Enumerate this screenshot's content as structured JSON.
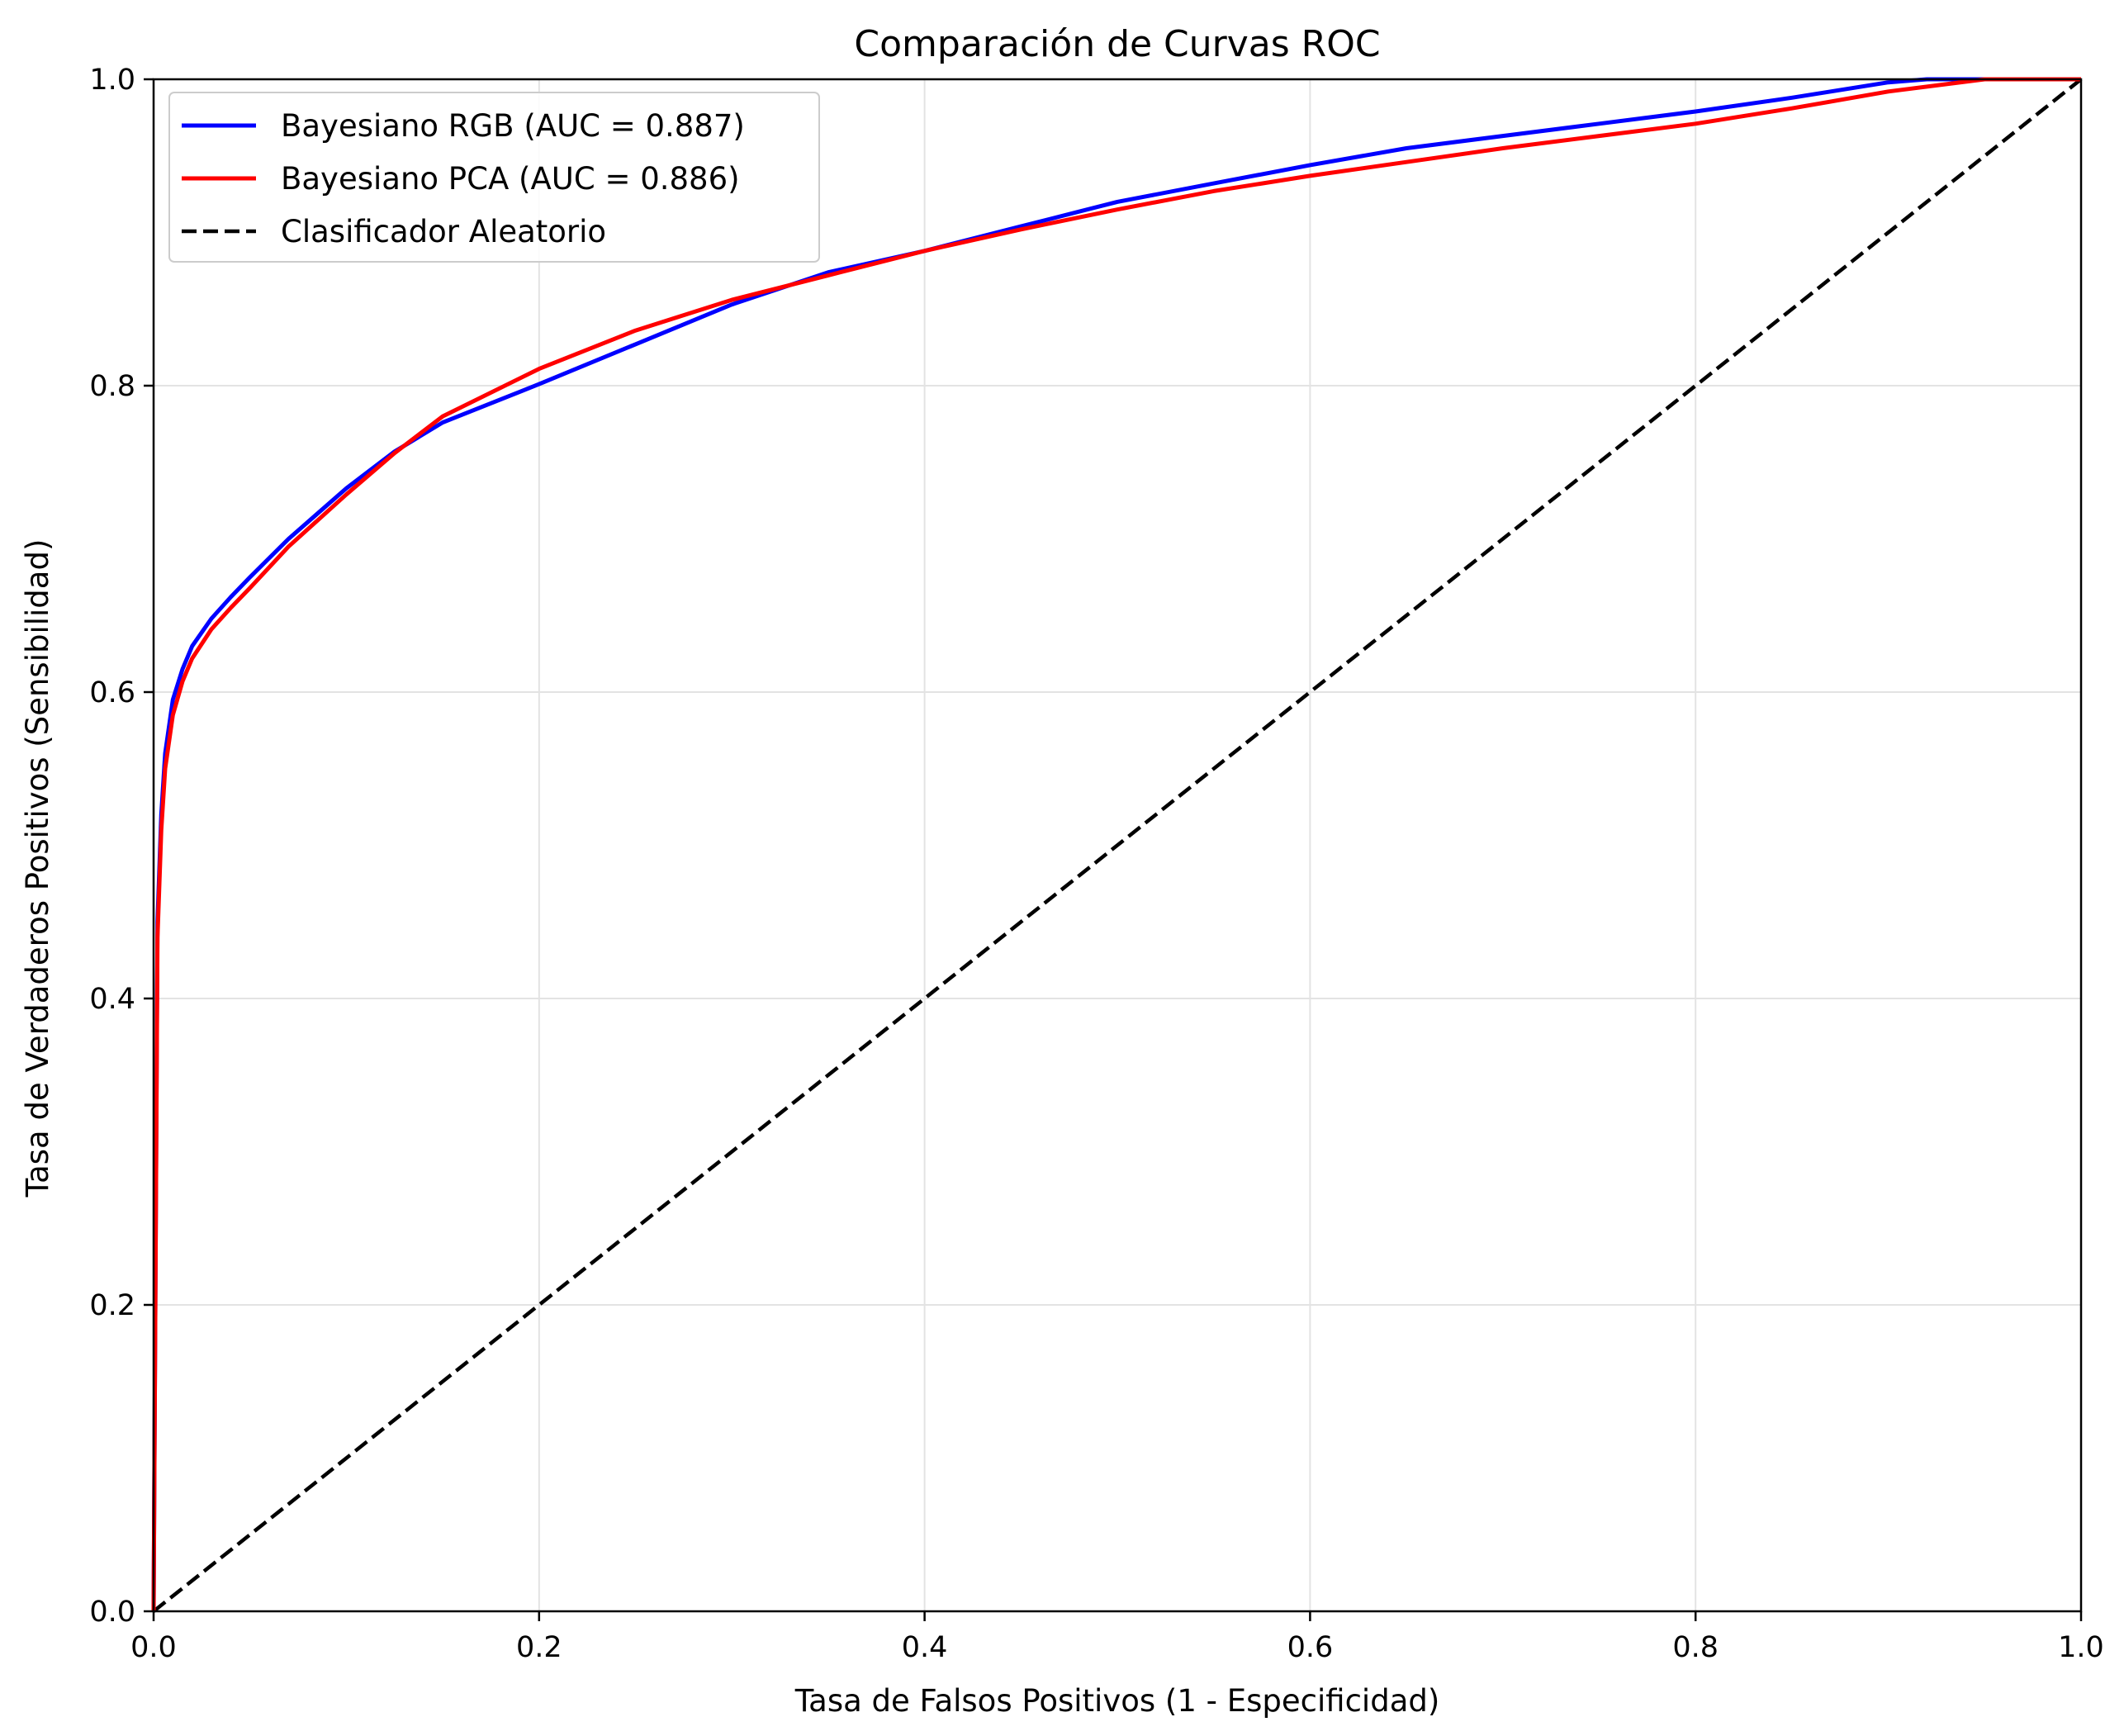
{
  "chart_data": {
    "type": "line",
    "title": "Comparación de Curvas ROC",
    "xlabel": "Tasa de Falsos Positivos (1 - Especificidad)",
    "ylabel": "Tasa de Verdaderos Positivos (Sensibilidad)",
    "xlim": [
      0,
      1
    ],
    "ylim": [
      0,
      1
    ],
    "xticks": [
      "0.0",
      "0.2",
      "0.4",
      "0.6",
      "0.8",
      "1.0"
    ],
    "yticks": [
      "0.0",
      "0.2",
      "0.4",
      "0.6",
      "0.8",
      "1.0"
    ],
    "grid": true,
    "legend_position": "top-left",
    "series": [
      {
        "name": "Bayesiano RGB (AUC = 0.887)",
        "color": "#0000ff",
        "style": "solid",
        "x": [
          0,
          0.002,
          0.004,
          0.006,
          0.01,
          0.015,
          0.02,
          0.03,
          0.04,
          0.05,
          0.07,
          0.1,
          0.125,
          0.15,
          0.2,
          0.25,
          0.3,
          0.35,
          0.4,
          0.45,
          0.5,
          0.55,
          0.6,
          0.65,
          0.7,
          0.75,
          0.8,
          0.85,
          0.9,
          0.92,
          0.95,
          1.0
        ],
        "y": [
          0,
          0.45,
          0.52,
          0.56,
          0.595,
          0.615,
          0.63,
          0.648,
          0.662,
          0.675,
          0.7,
          0.733,
          0.757,
          0.776,
          0.801,
          0.827,
          0.853,
          0.874,
          0.888,
          0.904,
          0.92,
          0.932,
          0.944,
          0.955,
          0.963,
          0.971,
          0.979,
          0.988,
          0.998,
          1.0,
          1.0,
          1.0
        ]
      },
      {
        "name": "Bayesiano PCA (AUC = 0.886)",
        "color": "#ff0000",
        "style": "solid",
        "x": [
          0,
          0.002,
          0.004,
          0.006,
          0.01,
          0.015,
          0.02,
          0.03,
          0.04,
          0.05,
          0.07,
          0.1,
          0.125,
          0.15,
          0.2,
          0.25,
          0.3,
          0.35,
          0.4,
          0.45,
          0.5,
          0.55,
          0.6,
          0.65,
          0.7,
          0.75,
          0.8,
          0.85,
          0.9,
          0.95,
          1.0
        ],
        "y": [
          0,
          0.44,
          0.51,
          0.55,
          0.585,
          0.607,
          0.622,
          0.641,
          0.655,
          0.668,
          0.695,
          0.729,
          0.756,
          0.78,
          0.811,
          0.836,
          0.856,
          0.872,
          0.888,
          0.902,
          0.915,
          0.927,
          0.937,
          0.946,
          0.955,
          0.963,
          0.971,
          0.981,
          0.992,
          1.0,
          1.0
        ]
      },
      {
        "name": "Clasificador Aleatorio",
        "color": "#000000",
        "style": "dashed",
        "x": [
          0,
          1
        ],
        "y": [
          0,
          1
        ]
      }
    ]
  }
}
